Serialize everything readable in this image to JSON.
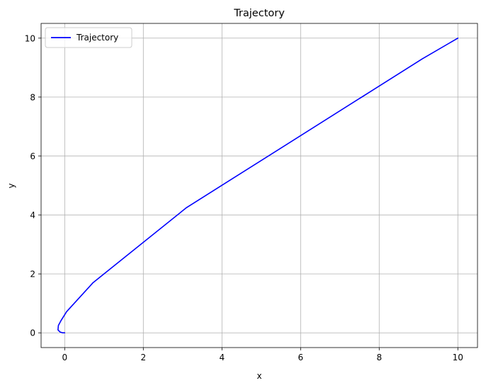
{
  "chart_data": {
    "type": "line",
    "title": "Trajectory",
    "xlabel": "x",
    "ylabel": "y",
    "xlim": [
      -0.6,
      10.5
    ],
    "ylim": [
      -0.5,
      10.5
    ],
    "xticks": [
      0,
      2,
      4,
      6,
      8,
      10
    ],
    "yticks": [
      0,
      2,
      4,
      6,
      8,
      10
    ],
    "grid": true,
    "legend": {
      "position": "top-left"
    },
    "series": [
      {
        "name": "Trajectory",
        "color": "#0000ff",
        "x": [
          0.0,
          -0.05,
          -0.12,
          -0.17,
          -0.16,
          -0.1,
          0.05,
          0.72,
          3.1,
          9.1,
          10.0
        ],
        "y": [
          0.0,
          0.0,
          0.03,
          0.1,
          0.25,
          0.4,
          0.72,
          1.7,
          4.25,
          9.3,
          10.0
        ]
      }
    ]
  }
}
